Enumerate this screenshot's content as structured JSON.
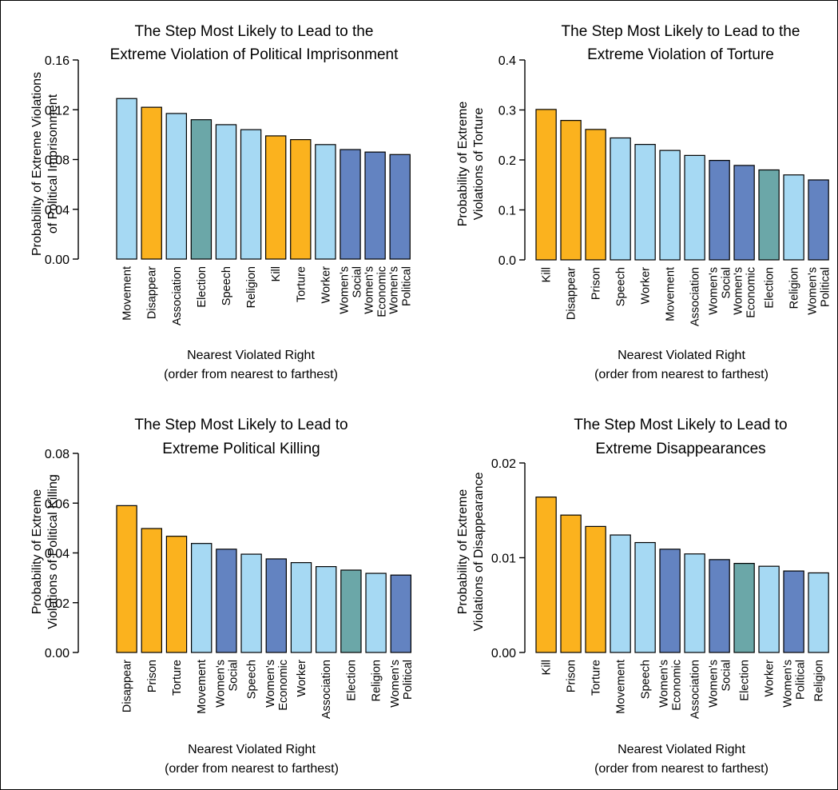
{
  "colors": {
    "orange": "#FBB21E",
    "light_blue": "#A6D9F3",
    "teal": "#6BA7A8",
    "dark_blue": "#6383C1",
    "outline": "#000000"
  },
  "chart_data": [
    {
      "type": "bar",
      "title": [
        "The Step Most Likely to Lead to the",
        "Extreme Violation of Political Imprisonment"
      ],
      "ylabel": [
        "Probability of Extreme Violations",
        "of  Political Imprisonment"
      ],
      "xlabel": [
        "Nearest Violated Right",
        "(order from nearest to farthest)"
      ],
      "ylim": [
        0,
        0.16
      ],
      "yticks": [
        "0.00",
        "0.04",
        "0.08",
        "0.12",
        "0.16"
      ],
      "categories": [
        [
          "Movement"
        ],
        [
          "Disappear"
        ],
        [
          "Association"
        ],
        [
          "Election"
        ],
        [
          "Speech"
        ],
        [
          "Religion"
        ],
        [
          "Kill"
        ],
        [
          "Torture"
        ],
        [
          "Worker"
        ],
        [
          "Women's",
          "Social"
        ],
        [
          "Women's",
          "Economic"
        ],
        [
          "Women's",
          "Political"
        ]
      ],
      "values": [
        0.129,
        0.122,
        0.117,
        0.112,
        0.108,
        0.104,
        0.099,
        0.096,
        0.092,
        0.088,
        0.086,
        0.084
      ],
      "colors": [
        "light_blue",
        "orange",
        "light_blue",
        "teal",
        "light_blue",
        "light_blue",
        "orange",
        "orange",
        "light_blue",
        "dark_blue",
        "dark_blue",
        "dark_blue"
      ]
    },
    {
      "type": "bar",
      "title": [
        "The Step Most Likely to Lead to the",
        "Extreme Violation of Torture"
      ],
      "ylabel": [
        "Probability of Extreme",
        "Violations of Torture"
      ],
      "xlabel": [
        "Nearest Violated Right",
        "(order from nearest to farthest)"
      ],
      "ylim": [
        0,
        0.4
      ],
      "yticks": [
        "0.0",
        "0.1",
        "0.2",
        "0.3",
        "0.4"
      ],
      "categories": [
        [
          "Kill"
        ],
        [
          "Disappear"
        ],
        [
          "Prison"
        ],
        [
          "Speech"
        ],
        [
          "Worker"
        ],
        [
          "Movement"
        ],
        [
          "Association"
        ],
        [
          "Women's",
          "Social"
        ],
        [
          "Women's",
          "Economic"
        ],
        [
          "Election"
        ],
        [
          "Religion"
        ],
        [
          "Women's",
          "Political"
        ]
      ],
      "values": [
        0.301,
        0.279,
        0.261,
        0.244,
        0.231,
        0.219,
        0.209,
        0.199,
        0.189,
        0.18,
        0.17,
        0.16
      ],
      "colors": [
        "orange",
        "orange",
        "orange",
        "light_blue",
        "light_blue",
        "light_blue",
        "light_blue",
        "dark_blue",
        "dark_blue",
        "teal",
        "light_blue",
        "dark_blue"
      ]
    },
    {
      "type": "bar",
      "title": [
        "The Step Most Likely to Lead to",
        "Extreme Political Killing"
      ],
      "ylabel": [
        "Probability of Extreme",
        "Violations of Political Killing"
      ],
      "xlabel": [
        "Nearest Violated Right",
        "(order from nearest to farthest)"
      ],
      "ylim": [
        0,
        0.08
      ],
      "yticks": [
        "0.00",
        "0.02",
        "0.04",
        "0.06",
        "0.08"
      ],
      "categories": [
        [
          "Disappear"
        ],
        [
          "Prison"
        ],
        [
          "Torture"
        ],
        [
          "Movement"
        ],
        [
          "Women's",
          "Social"
        ],
        [
          "Speech"
        ],
        [
          "Women's",
          "Economic"
        ],
        [
          "Worker"
        ],
        [
          "Association"
        ],
        [
          "Election"
        ],
        [
          "Religion"
        ],
        [
          "Women's",
          "Political"
        ]
      ],
      "values": [
        0.059,
        0.0498,
        0.0467,
        0.0438,
        0.0415,
        0.0395,
        0.0376,
        0.0361,
        0.0345,
        0.0331,
        0.0318,
        0.0311
      ],
      "colors": [
        "orange",
        "orange",
        "orange",
        "light_blue",
        "dark_blue",
        "light_blue",
        "dark_blue",
        "light_blue",
        "light_blue",
        "teal",
        "light_blue",
        "dark_blue"
      ]
    },
    {
      "type": "bar",
      "title": [
        "The Step Most Likely to Lead to",
        "Extreme Disappearances"
      ],
      "ylabel": [
        "Probability of Extreme",
        "Violations of Disappearance"
      ],
      "xlabel": [
        "Nearest Violated Right",
        "(order from nearest to farthest)"
      ],
      "ylim": [
        0,
        0.02
      ],
      "yticks": [
        "0.00",
        "0.01",
        "0.02"
      ],
      "categories": [
        [
          "Kill"
        ],
        [
          "Prison"
        ],
        [
          "Torture"
        ],
        [
          "Movement"
        ],
        [
          "Speech"
        ],
        [
          "Women's",
          "Economic"
        ],
        [
          "Association"
        ],
        [
          "Women's",
          "Social"
        ],
        [
          "Election"
        ],
        [
          "Worker"
        ],
        [
          "Women's",
          "Political"
        ],
        [
          "Religion"
        ]
      ],
      "values": [
        0.0164,
        0.0145,
        0.0133,
        0.0124,
        0.0116,
        0.0109,
        0.0104,
        0.0098,
        0.0094,
        0.0091,
        0.0086,
        0.0084
      ],
      "colors": [
        "orange",
        "orange",
        "orange",
        "light_blue",
        "light_blue",
        "dark_blue",
        "light_blue",
        "dark_blue",
        "teal",
        "light_blue",
        "dark_blue",
        "light_blue"
      ]
    }
  ]
}
